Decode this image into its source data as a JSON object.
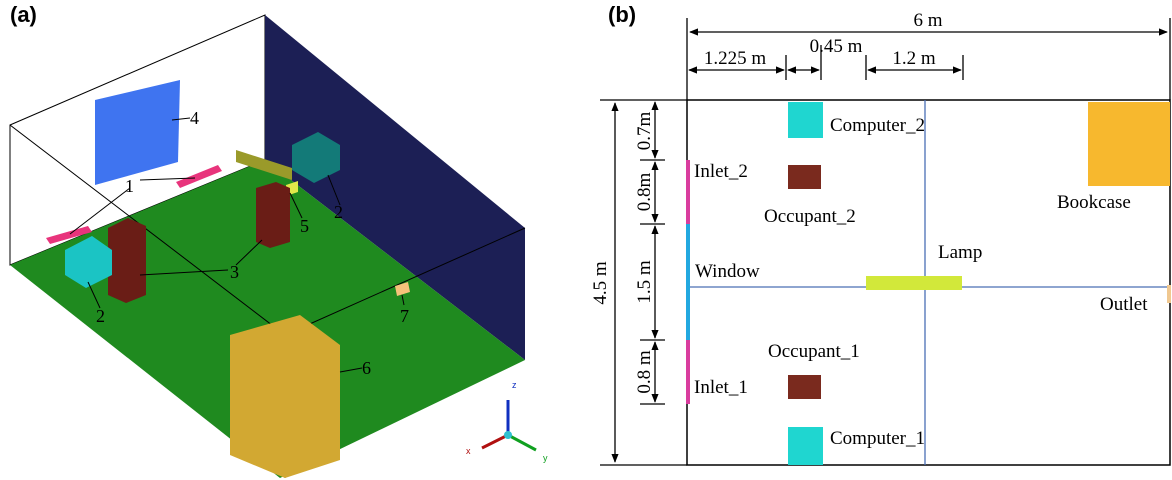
{
  "panel_a": {
    "label": "(a)",
    "callouts": [
      "4",
      "1",
      "5",
      "2",
      "3",
      "2",
      "6",
      "7"
    ],
    "axes": [
      "z",
      "x",
      "y"
    ]
  },
  "panel_b": {
    "label": "(b)",
    "dimensions": [
      "6 m",
      "1.225 m",
      "0.45 m",
      "1.2 m",
      "4.5 m",
      "0.7m",
      "0.8m",
      "1.5 m",
      "0.8 m"
    ],
    "objects": [
      "Computer_2",
      "Inlet_2",
      "Occupant_2",
      "Bookcase",
      "Window",
      "Lamp",
      "Outlet",
      "Occupant_1",
      "Inlet_1",
      "Computer_1"
    ]
  }
}
